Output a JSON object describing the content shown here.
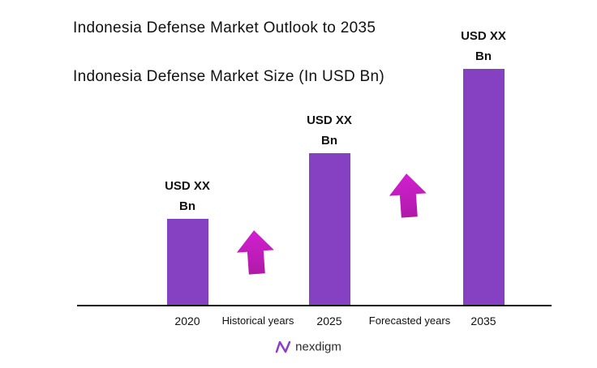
{
  "chart_data": {
    "type": "bar",
    "title": "Indonesia Defense Market Outlook to 2035",
    "subtitle": "Indonesia Defense Market Size (In USD Bn)",
    "categories": [
      "2020",
      "2025",
      "2035"
    ],
    "values": [
      106,
      187,
      291
    ],
    "value_labels": [
      "USD XX Bn",
      "USD XX Bn",
      "USD XX Bn"
    ],
    "color": "#8541c1",
    "annotations": [
      "Historical years",
      "Forecasted years"
    ],
    "brand": "nexdigm"
  }
}
